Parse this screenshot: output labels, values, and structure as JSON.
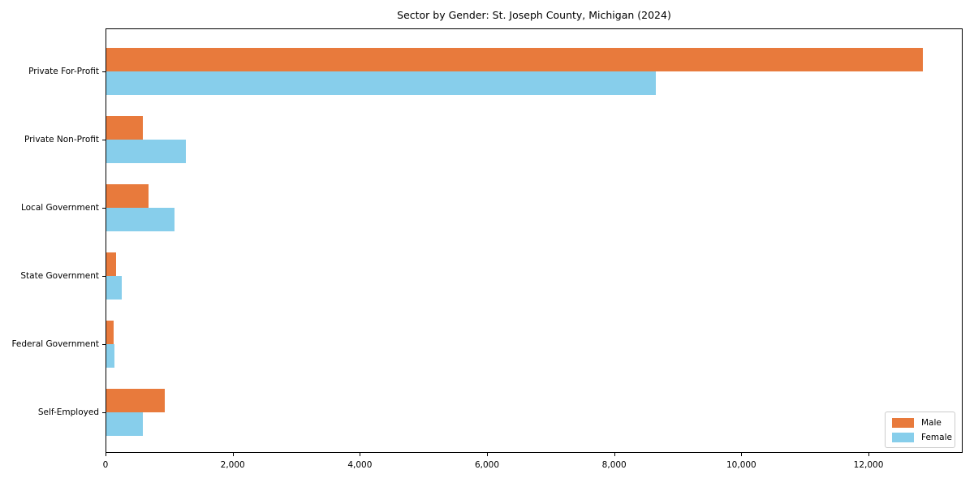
{
  "chart_data": {
    "type": "bar",
    "orientation": "horizontal",
    "title": "Sector by Gender: St. Joseph County, Michigan (2024)",
    "categories": [
      "Private For-Profit",
      "Private Non-Profit",
      "Local Government",
      "State Government",
      "Federal Government",
      "Self-Employed"
    ],
    "series": [
      {
        "name": "Male",
        "color": "#E87A3C",
        "values": [
          12850,
          590,
          680,
          170,
          130,
          930
        ]
      },
      {
        "name": "Female",
        "color": "#87CEEB",
        "values": [
          8660,
          1270,
          1090,
          250,
          145,
          590
        ]
      }
    ],
    "xlabel": "",
    "ylabel": "",
    "xlim": [
      0,
      13480
    ],
    "x_ticks": [
      0,
      2000,
      4000,
      6000,
      8000,
      10000,
      12000
    ],
    "x_tick_labels": [
      "0",
      "2,000",
      "4,000",
      "6,000",
      "8,000",
      "10,000",
      "12,000"
    ],
    "grid": false,
    "legend": {
      "position": "lower right"
    },
    "colors": {
      "axis": "#000000",
      "legend_border": "#cccccc",
      "background": "#ffffff"
    }
  }
}
